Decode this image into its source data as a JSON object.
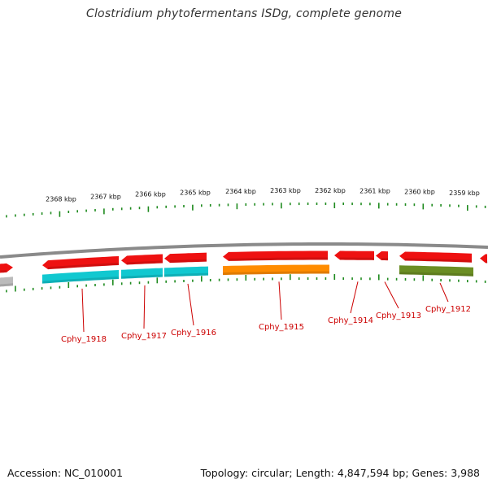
{
  "title": "Clostridium phytofermentans ISDg, complete genome",
  "footer": {
    "accession": "Accession: NC_010001",
    "summary": "Topology: circular; Length: 4,847,594 bp; Genes: 3,988"
  },
  "colors": {
    "cds_strand": "#ee1111",
    "backbone": "#8a8a8a",
    "tick": "#1e8a1e",
    "label": "#cc0000",
    "cyan": "#11c8d0",
    "orange": "#ff8c00",
    "olive": "#6b8e23",
    "gray": "#bbbbbb"
  },
  "scale": {
    "kbp_labels": [
      "2368 kbp",
      "2367 kbp",
      "2366 kbp",
      "2365 kbp",
      "2364 kbp",
      "2363 kbp",
      "2362 kbp",
      "2361 kbp",
      "2360 kbp",
      "2359 kbp"
    ]
  },
  "genes": [
    {
      "label": "Cphy_1918",
      "cog_color": "cyan"
    },
    {
      "label": "Cphy_1917",
      "cog_color": "cyan"
    },
    {
      "label": "Cphy_1916",
      "cog_color": "cyan"
    },
    {
      "label": "Cphy_1915",
      "cog_color": "orange"
    },
    {
      "label": "Cphy_1914",
      "cog_color": "none"
    },
    {
      "label": "Cphy_1913",
      "cog_color": "none"
    },
    {
      "label": "Cphy_1912",
      "cog_color": "olive"
    }
  ]
}
